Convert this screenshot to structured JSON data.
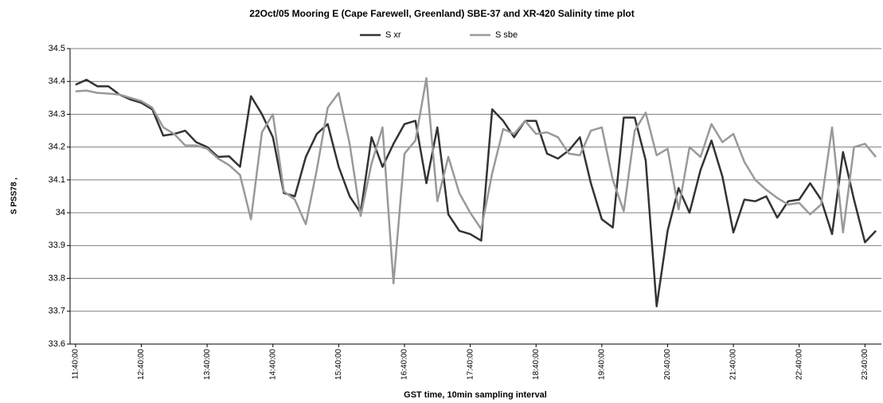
{
  "chart_data": {
    "type": "line",
    "title": "22Oct/05 Mooring E (Cape Farewell, Greenland) SBE-37 and XR-420 Salinity time plot",
    "x_label": "GST time, 10min sampling interval",
    "y_label": "S PSS78 ,",
    "categories": [
      "11:40:00",
      null,
      null,
      null,
      null,
      null,
      "12:40:00",
      null,
      null,
      null,
      null,
      null,
      "13:40:00",
      null,
      null,
      null,
      null,
      null,
      "14:40:00",
      null,
      null,
      null,
      null,
      null,
      "15:40:00",
      null,
      null,
      null,
      null,
      null,
      "16:40:00",
      null,
      null,
      null,
      null,
      null,
      "17:40:00",
      null,
      null,
      null,
      null,
      null,
      "18:40:00",
      null,
      null,
      null,
      null,
      null,
      "19:40:00",
      null,
      null,
      null,
      null,
      null,
      "20:40:00",
      null,
      null,
      null,
      null,
      null,
      "21:40:00",
      null,
      null,
      null,
      null,
      null,
      "22:40:00",
      null,
      null,
      null,
      null,
      null,
      "23:40:00",
      null
    ],
    "series": [
      {
        "name": "S xr",
        "color": "#333333",
        "values": [
          34.39,
          34.405,
          34.385,
          34.385,
          34.36,
          34.345,
          34.335,
          34.315,
          34.235,
          34.24,
          34.25,
          34.215,
          34.2,
          34.17,
          34.172,
          34.14,
          34.355,
          34.3,
          34.23,
          34.06,
          34.05,
          34.17,
          34.24,
          34.27,
          34.14,
          34.05,
          34.0,
          34.23,
          34.14,
          34.21,
          34.27,
          34.28,
          34.09,
          34.26,
          33.995,
          33.945,
          33.935,
          33.915,
          34.315,
          34.28,
          34.23,
          34.28,
          34.28,
          34.18,
          34.165,
          34.19,
          34.23,
          34.09,
          33.98,
          33.955,
          34.29,
          34.29,
          34.16,
          33.715,
          33.945,
          34.075,
          34.0,
          34.13,
          34.22,
          34.11,
          33.94,
          34.04,
          34.035,
          34.05,
          33.985,
          34.035,
          34.04,
          34.09,
          34.04,
          33.935,
          34.185,
          34.04,
          33.91,
          33.945
        ]
      },
      {
        "name": "S sbe",
        "color": "#999999",
        "values": [
          34.37,
          34.372,
          34.365,
          34.363,
          34.36,
          34.35,
          34.34,
          34.32,
          34.26,
          34.24,
          34.205,
          34.205,
          34.195,
          34.165,
          34.145,
          34.115,
          33.98,
          34.245,
          34.3,
          34.065,
          34.04,
          33.965,
          34.13,
          34.32,
          34.365,
          34.21,
          33.99,
          34.15,
          34.26,
          33.785,
          34.18,
          34.22,
          34.41,
          34.035,
          34.17,
          34.06,
          34.0,
          33.95,
          34.12,
          34.255,
          34.24,
          34.28,
          34.24,
          34.245,
          34.23,
          34.18,
          34.175,
          34.25,
          34.26,
          34.1,
          34.005,
          34.25,
          34.305,
          34.175,
          34.195,
          34.01,
          34.2,
          34.17,
          34.27,
          34.215,
          34.24,
          34.155,
          34.1,
          34.07,
          34.045,
          34.025,
          34.03,
          33.995,
          34.025,
          34.26,
          33.94,
          34.2,
          34.21,
          34.17
        ]
      }
    ],
    "ylim": [
      33.6,
      34.5
    ],
    "yticks": [
      33.6,
      33.7,
      33.8,
      33.9,
      34,
      34.1,
      34.2,
      34.3,
      34.4,
      34.5
    ],
    "grid": true
  }
}
